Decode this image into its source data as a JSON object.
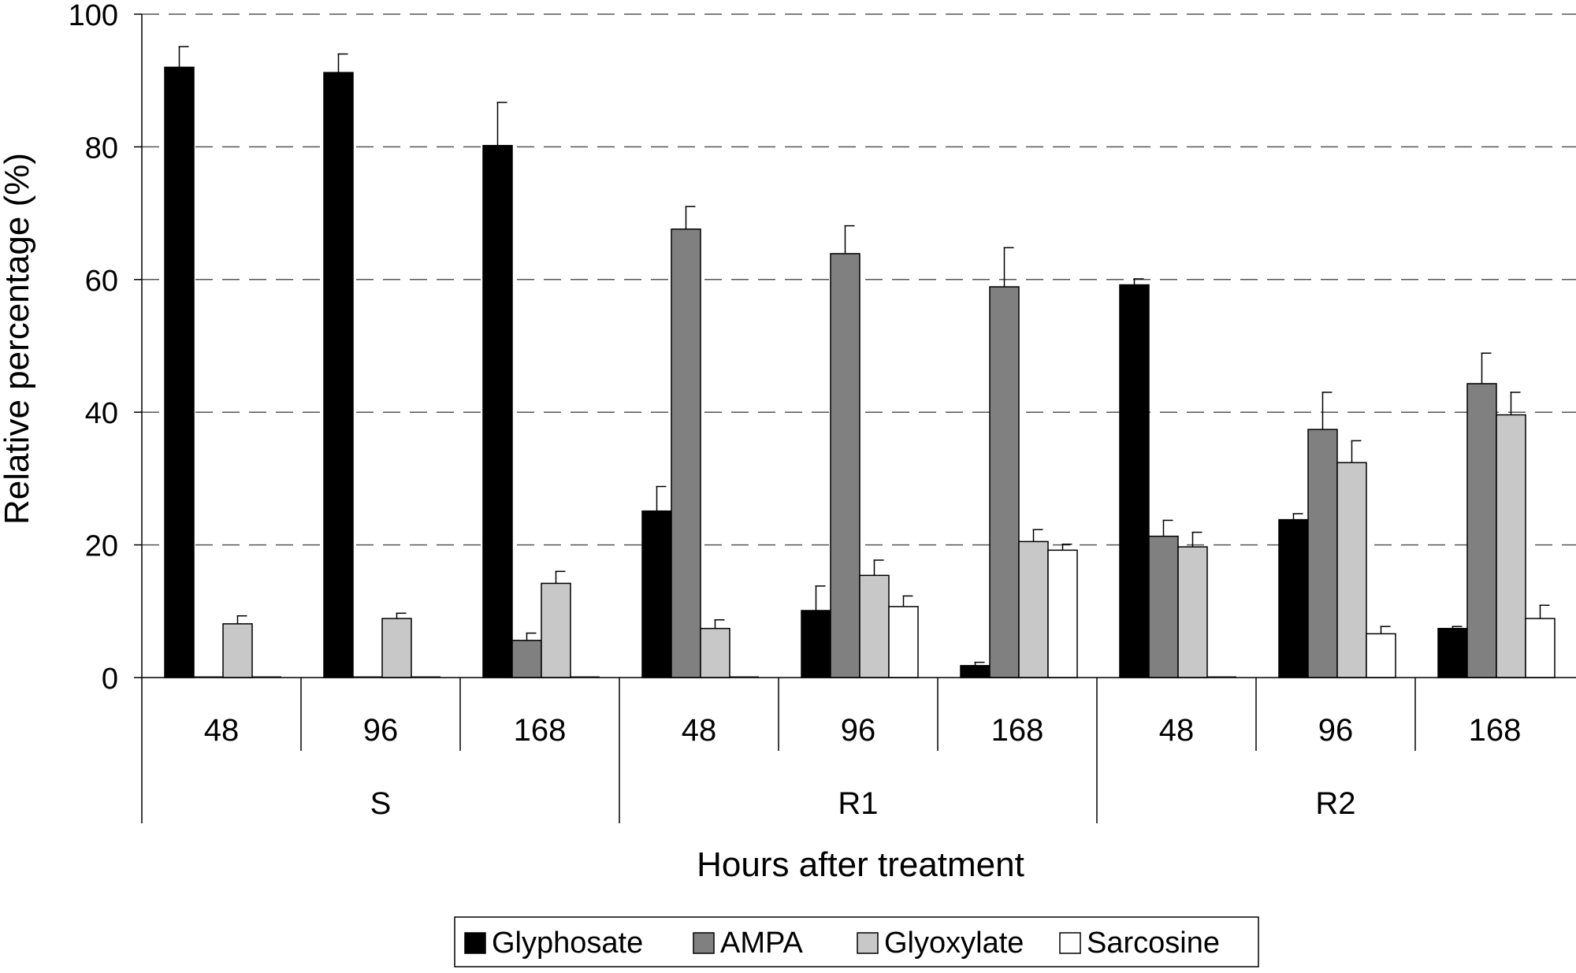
{
  "chart_data": {
    "type": "bar",
    "ylabel": "Relative percentage (%)",
    "xlabel": "Hours after treatment",
    "ylim": [
      0,
      100
    ],
    "yticks": [
      "0",
      "20",
      "40",
      "60",
      "80",
      "100"
    ],
    "grid": "horizontal dashed",
    "legend_position": "bottom-center",
    "groups": [
      {
        "label": "S",
        "categories": [
          "48",
          "96",
          "168"
        ]
      },
      {
        "label": "R1",
        "categories": [
          "48",
          "96",
          "168"
        ]
      },
      {
        "label": "R2",
        "categories": [
          "48",
          "96",
          "168"
        ]
      }
    ],
    "series": [
      {
        "name": "Glyphosate",
        "color": "#000000",
        "values": [
          92,
          91.2,
          80.2,
          25.1,
          10.1,
          1.8,
          59.2,
          23.8,
          7.4
        ],
        "errors": [
          3.1,
          2.8,
          6.5,
          3.7,
          3.7,
          0.5,
          0.9,
          0.9,
          0.3
        ]
      },
      {
        "name": "AMPA",
        "color": "#808080",
        "values": [
          0,
          0,
          5.6,
          67.6,
          63.9,
          58.9,
          21.3,
          37.4,
          44.3
        ],
        "errors": [
          0,
          0,
          1.1,
          3.4,
          4.2,
          5.9,
          2.4,
          5.6,
          4.6
        ]
      },
      {
        "name": "Glyoxylate",
        "color": "#c8c8c8",
        "values": [
          8.1,
          8.9,
          14.2,
          7.4,
          15.4,
          20.5,
          19.7,
          32.4,
          39.6
        ],
        "errors": [
          1.2,
          0.8,
          1.8,
          1.3,
          2.3,
          1.8,
          2.2,
          3.3,
          3.4
        ]
      },
      {
        "name": "Sarcosine",
        "color": "#ffffff",
        "values": [
          0,
          0,
          0,
          0,
          10.7,
          19.2,
          0,
          6.6,
          8.9
        ],
        "errors": [
          0,
          0,
          0,
          0,
          1.6,
          0.9,
          0,
          1.1,
          2
        ]
      }
    ]
  }
}
